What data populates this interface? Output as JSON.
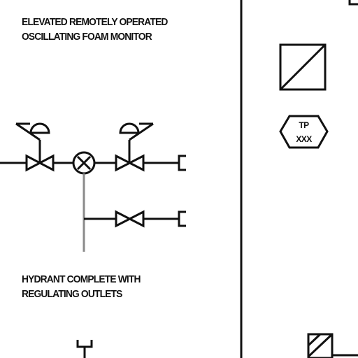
{
  "legend": {
    "foam_monitor_caption": [
      "ELEVATED REMOTELY OPERATED",
      "OSCILLATING FOAM MONITOR"
    ],
    "hydrant_caption": [
      "HYDRANT COMPLETE WITH",
      "REGULATING OUTLETS"
    ],
    "tag_label": [
      "TP",
      "XXX"
    ]
  },
  "colors": {
    "line": "#111111",
    "background": "#ffffff"
  }
}
